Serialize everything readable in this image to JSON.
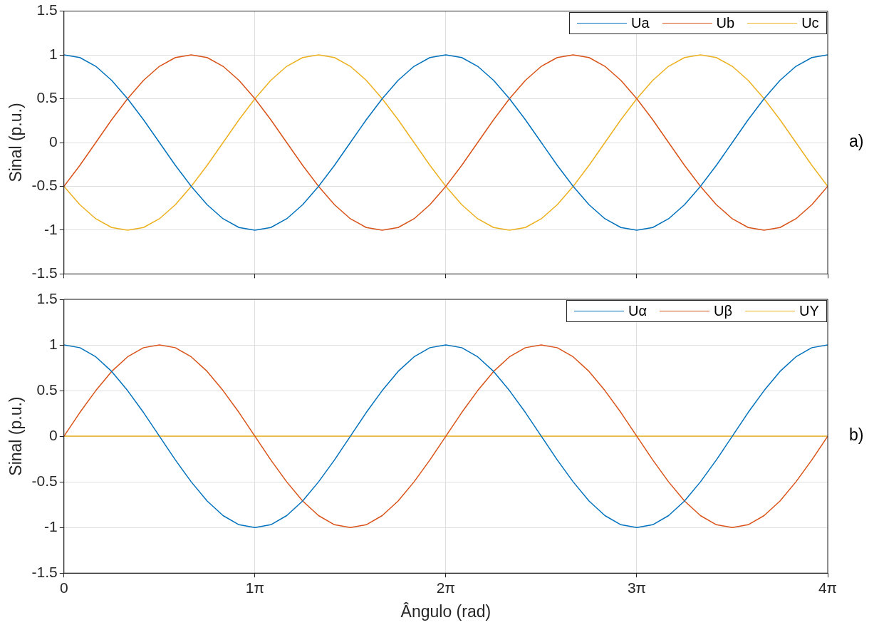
{
  "chart_data": [
    {
      "type": "line",
      "ylabel": "Sinal (p.u.)",
      "annotations": [
        "a)"
      ],
      "legend": "top right",
      "grid": true,
      "tick_labels": "y",
      "x": [
        0,
        0.262,
        0.524,
        0.785,
        1.047,
        1.309,
        1.571,
        1.833,
        2.094,
        2.356,
        2.618,
        2.88,
        3.142,
        3.403,
        3.665,
        3.927,
        4.189,
        4.451,
        4.712,
        4.974,
        5.236,
        5.498,
        5.76,
        6.021,
        6.283,
        6.545,
        6.807,
        7.069,
        7.33,
        7.592,
        7.854,
        8.116,
        8.378,
        8.639,
        8.901,
        9.163,
        9.425,
        9.687,
        9.948,
        10.21,
        10.472,
        10.734,
        10.996,
        11.257,
        11.519,
        11.781,
        12.043,
        12.305,
        12.566
      ],
      "xlim": [
        0,
        12.566
      ],
      "xticks": [
        {
          "value": 0,
          "label": null
        },
        {
          "value": 3.142,
          "label": null
        },
        {
          "value": 6.283,
          "label": null
        },
        {
          "value": 9.425,
          "label": null
        },
        {
          "value": 12.566,
          "label": null
        }
      ],
      "ylim": [
        -1.5,
        1.5
      ],
      "yticks": [
        -1.5,
        -1,
        -0.5,
        0,
        0.5,
        1,
        1.5
      ],
      "series": [
        {
          "name": "Ua",
          "color": "#0072bd",
          "values": [
            1,
            0.97,
            0.87,
            0.71,
            0.5,
            0.26,
            0,
            -0.26,
            -0.5,
            -0.71,
            -0.87,
            -0.97,
            -1,
            -0.97,
            -0.87,
            -0.71,
            -0.5,
            -0.26,
            0,
            0.26,
            0.5,
            0.71,
            0.87,
            0.97,
            1,
            0.97,
            0.87,
            0.71,
            0.5,
            0.26,
            0,
            -0.26,
            -0.5,
            -0.71,
            -0.87,
            -0.97,
            -1,
            -0.97,
            -0.87,
            -0.71,
            -0.5,
            -0.26,
            0,
            0.26,
            0.5,
            0.71,
            0.87,
            0.97,
            1
          ]
        },
        {
          "name": "Ub",
          "color": "#d95319",
          "values": [
            -0.5,
            -0.26,
            0,
            0.26,
            0.5,
            0.71,
            0.87,
            0.97,
            1,
            0.97,
            0.87,
            0.71,
            0.5,
            0.26,
            0,
            -0.26,
            -0.5,
            -0.71,
            -0.87,
            -0.97,
            -1,
            -0.97,
            -0.87,
            -0.71,
            -0.5,
            -0.26,
            0,
            0.26,
            0.5,
            0.71,
            0.87,
            0.97,
            1,
            0.97,
            0.87,
            0.71,
            0.5,
            0.26,
            0,
            -0.26,
            -0.5,
            -0.71,
            -0.87,
            -0.97,
            -1,
            -0.97,
            -0.87,
            -0.71,
            -0.5
          ]
        },
        {
          "name": "Uc",
          "color": "#edb120",
          "values": [
            -0.5,
            -0.71,
            -0.87,
            -0.97,
            -1,
            -0.97,
            -0.87,
            -0.71,
            -0.5,
            -0.26,
            0,
            0.26,
            0.5,
            0.71,
            0.87,
            0.97,
            1,
            0.97,
            0.87,
            0.71,
            0.5,
            0.26,
            0,
            -0.26,
            -0.5,
            -0.71,
            -0.87,
            -0.97,
            -1,
            -0.97,
            -0.87,
            -0.71,
            -0.5,
            -0.26,
            0,
            0.26,
            0.5,
            0.71,
            0.87,
            0.97,
            1,
            0.97,
            0.87,
            0.71,
            0.5,
            0.26,
            0,
            -0.26,
            -0.5
          ]
        }
      ]
    },
    {
      "type": "line",
      "xlabel": "Ângulo (rad)",
      "ylabel": "Sinal (p.u.)",
      "annotations": [
        "b)"
      ],
      "legend": "top right",
      "grid": true,
      "x": [
        0,
        0.262,
        0.524,
        0.785,
        1.047,
        1.309,
        1.571,
        1.833,
        2.094,
        2.356,
        2.618,
        2.88,
        3.142,
        3.403,
        3.665,
        3.927,
        4.189,
        4.451,
        4.712,
        4.974,
        5.236,
        5.498,
        5.76,
        6.021,
        6.283,
        6.545,
        6.807,
        7.069,
        7.33,
        7.592,
        7.854,
        8.116,
        8.378,
        8.639,
        8.901,
        9.163,
        9.425,
        9.687,
        9.948,
        10.21,
        10.472,
        10.734,
        10.996,
        11.257,
        11.519,
        11.781,
        12.043,
        12.305,
        12.566
      ],
      "xlim": [
        0,
        12.566
      ],
      "xticks": [
        {
          "value": 0,
          "label": "0"
        },
        {
          "value": 3.142,
          "label": "1π"
        },
        {
          "value": 6.283,
          "label": "2π"
        },
        {
          "value": 9.425,
          "label": "3π"
        },
        {
          "value": 12.566,
          "label": "4π"
        }
      ],
      "ylim": [
        -1.5,
        1.5
      ],
      "yticks": [
        -1.5,
        -1,
        -0.5,
        0,
        0.5,
        1,
        1.5
      ],
      "series": [
        {
          "name": "Uα",
          "color": "#0072bd",
          "values": [
            1,
            0.97,
            0.87,
            0.71,
            0.5,
            0.26,
            0,
            -0.26,
            -0.5,
            -0.71,
            -0.87,
            -0.97,
            -1,
            -0.97,
            -0.87,
            -0.71,
            -0.5,
            -0.26,
            0,
            0.26,
            0.5,
            0.71,
            0.87,
            0.97,
            1,
            0.97,
            0.87,
            0.71,
            0.5,
            0.26,
            0,
            -0.26,
            -0.5,
            -0.71,
            -0.87,
            -0.97,
            -1,
            -0.97,
            -0.87,
            -0.71,
            -0.5,
            -0.26,
            0,
            0.26,
            0.5,
            0.71,
            0.87,
            0.97,
            1
          ]
        },
        {
          "name": "Uβ",
          "color": "#d95319",
          "values": [
            0,
            0.26,
            0.5,
            0.71,
            0.87,
            0.97,
            1,
            0.97,
            0.87,
            0.71,
            0.5,
            0.26,
            0,
            -0.26,
            -0.5,
            -0.71,
            -0.87,
            -0.97,
            -1,
            -0.97,
            -0.87,
            -0.71,
            -0.5,
            -0.26,
            0,
            0.26,
            0.5,
            0.71,
            0.87,
            0.97,
            1,
            0.97,
            0.87,
            0.71,
            0.5,
            0.26,
            0,
            -0.26,
            -0.5,
            -0.71,
            -0.87,
            -0.97,
            -1,
            -0.97,
            -0.87,
            -0.71,
            -0.5,
            -0.26,
            0
          ]
        },
        {
          "name": "UΥ",
          "color": "#edb120",
          "values": [
            0,
            0,
            0,
            0,
            0,
            0,
            0,
            0,
            0,
            0,
            0,
            0,
            0,
            0,
            0,
            0,
            0,
            0,
            0,
            0,
            0,
            0,
            0,
            0,
            0,
            0,
            0,
            0,
            0,
            0,
            0,
            0,
            0,
            0,
            0,
            0,
            0,
            0,
            0,
            0,
            0,
            0,
            0,
            0,
            0,
            0,
            0,
            0,
            0
          ]
        }
      ]
    }
  ]
}
